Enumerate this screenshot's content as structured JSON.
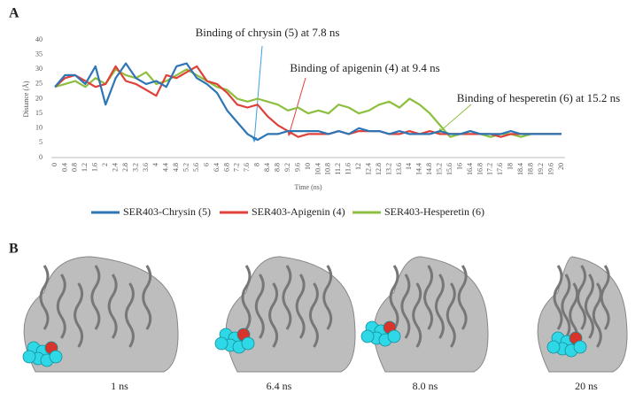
{
  "panel_a_label": "A",
  "chart_data": {
    "type": "line",
    "x_label": "Time (ns)",
    "y_label": "Distance (Å)",
    "categories": [
      "0",
      "0.4",
      "0.8",
      "1.2",
      "1.6",
      "2",
      "2.4",
      "2.8",
      "3.2",
      "3.6",
      "4",
      "4.4",
      "4.8",
      "5.2",
      "5.6",
      "6",
      "6.4",
      "6.8",
      "7.2",
      "7.6",
      "8",
      "8.4",
      "8.8",
      "9.2",
      "9.6",
      "10",
      "10.4",
      "10.8",
      "11.2",
      "11.6",
      "12",
      "12.4",
      "12.8",
      "13.2",
      "13.6",
      "14",
      "14.4",
      "14.8",
      "15.2",
      "15.6",
      "16",
      "16.4",
      "16.8",
      "17.2",
      "17.6",
      "18",
      "18.4",
      "18.8",
      "19.2",
      "19.6",
      "20"
    ],
    "series": [
      {
        "name": "SER403-Chrysin (5)",
        "color": "#2e75b6",
        "values": [
          24,
          28,
          28,
          25,
          31,
          18,
          27,
          32,
          27,
          25,
          26,
          24,
          31,
          32,
          27,
          25,
          22,
          16,
          12,
          8,
          6,
          8,
          8,
          9,
          9,
          9,
          9,
          8,
          9,
          8,
          10,
          9,
          9,
          8,
          9,
          8,
          8,
          8,
          9,
          8,
          8,
          9,
          8,
          8,
          8,
          9,
          8,
          8,
          8,
          8,
          8
        ]
      },
      {
        "name": "SER403-Apigenin (4)",
        "color": "#e0403a",
        "values": [
          24,
          27,
          28,
          26,
          24,
          25,
          31,
          26,
          25,
          23,
          21,
          28,
          27,
          29,
          31,
          26,
          25,
          22,
          18,
          17,
          18,
          14,
          11,
          9,
          7,
          8,
          8,
          8,
          9,
          8,
          9,
          9,
          9,
          8,
          8,
          9,
          8,
          9,
          8,
          8,
          8,
          8,
          8,
          8,
          7,
          8,
          8,
          8,
          8,
          8,
          8
        ]
      },
      {
        "name": "SER403-Hesperetin (6)",
        "color": "#8cbf3f",
        "values": [
          24,
          25,
          26,
          24,
          27,
          25,
          30,
          28,
          27,
          29,
          25,
          26,
          28,
          30,
          28,
          26,
          24,
          23,
          20,
          19,
          20,
          19,
          18,
          16,
          17,
          15,
          16,
          15,
          18,
          17,
          15,
          16,
          18,
          19,
          17,
          20,
          18,
          15,
          11,
          7,
          8,
          9,
          8,
          7,
          8,
          8,
          7,
          8,
          8,
          8,
          8
        ]
      }
    ],
    "ylim": [
      0,
      40
    ],
    "yticks": [
      0,
      5,
      10,
      15,
      20,
      25,
      30,
      35,
      40
    ],
    "grid": false,
    "annotations": [
      "Binding of chrysin (5) at 7.8 ns",
      "Binding of apigenin (4) at 9.4 ns",
      "Binding of hesperetin (6) at 15.2 ns"
    ]
  },
  "panel_b": {
    "label": "B",
    "captions": [
      "1 ns",
      "6.4 ns",
      "8.0 ns",
      "20 ns"
    ]
  }
}
